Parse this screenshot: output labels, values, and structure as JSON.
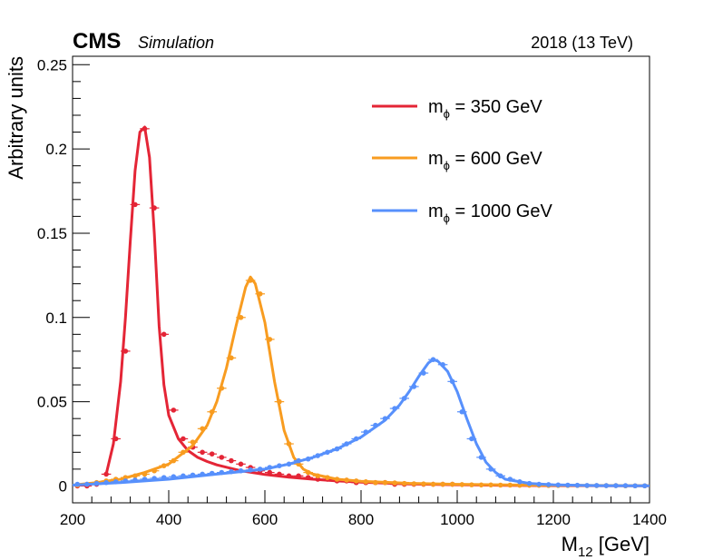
{
  "header": {
    "experiment": "CMS",
    "label": "Simulation",
    "energy": "2018 (13 TeV)"
  },
  "chart_data": {
    "type": "line",
    "title": "",
    "xlabel_main": "M",
    "xlabel_sub": "12",
    "xlabel_unit": " [GeV]",
    "ylabel": "Arbitrary units",
    "xlim": [
      200,
      1400
    ],
    "ylim": [
      -0.01,
      0.255
    ],
    "x_ticks": [
      200,
      400,
      600,
      800,
      1000,
      1200,
      1400
    ],
    "y_ticks": [
      0,
      0.05,
      0.1,
      0.15,
      0.2,
      0.25
    ],
    "x_tick_labels": [
      "200",
      "400",
      "600",
      "800",
      "1000",
      "1200",
      "1400"
    ],
    "y_tick_labels": [
      "0",
      "0.05",
      "0.1",
      "0.15",
      "0.2",
      "0.25"
    ],
    "grid": false,
    "legend_position": "top-right",
    "series": [
      {
        "name": "350",
        "legend_prefix": "m",
        "legend_sub": "ϕ",
        "legend_text": " = 350 GeV",
        "color": "#e42536",
        "curve": {
          "x": [
            270,
            285,
            300,
            310,
            320,
            330,
            340,
            350,
            360,
            370,
            380,
            390,
            400,
            420,
            440,
            460,
            480,
            500,
            550,
            600,
            650,
            700,
            750,
            800,
            850,
            900,
            1000,
            1100,
            1200,
            1400
          ],
          "y": [
            0.007,
            0.025,
            0.062,
            0.1,
            0.145,
            0.187,
            0.21,
            0.213,
            0.195,
            0.15,
            0.095,
            0.06,
            0.042,
            0.028,
            0.021,
            0.017,
            0.0145,
            0.0125,
            0.009,
            0.0068,
            0.0052,
            0.004,
            0.003,
            0.0023,
            0.0017,
            0.0012,
            0.0007,
            0.0004,
            0.0002,
            0.0001
          ]
        },
        "points": {
          "x": [
            210,
            230,
            250,
            270,
            290,
            310,
            330,
            350,
            370,
            390,
            410,
            430,
            450,
            470,
            490,
            510,
            530,
            550,
            570,
            590,
            610,
            630,
            650,
            670,
            690,
            710,
            730,
            750,
            770,
            790,
            810,
            830,
            850,
            870,
            890,
            910,
            930,
            950,
            970,
            990
          ],
          "y": [
            0,
            0,
            0.001,
            0.007,
            0.028,
            0.08,
            0.167,
            0.212,
            0.165,
            0.09,
            0.045,
            0.028,
            0.023,
            0.02,
            0.019,
            0.017,
            0.015,
            0.013,
            0.011,
            0.009,
            0.008,
            0.007,
            0.006,
            0.006,
            0.005,
            0.004,
            0.004,
            0.003,
            0.003,
            0.002,
            0.002,
            0.002,
            0.002,
            0.001,
            0.001,
            0.001,
            0.001,
            0.001,
            0.001,
            0.001
          ]
        }
      },
      {
        "name": "600",
        "legend_prefix": "m",
        "legend_sub": "ϕ",
        "legend_text": " = 600 GeV",
        "color": "#f89c20",
        "curve": {
          "x": [
            200,
            250,
            300,
            350,
            400,
            450,
            480,
            500,
            520,
            540,
            560,
            570,
            580,
            600,
            620,
            640,
            660,
            680,
            700,
            750,
            800,
            900,
            1000,
            1100,
            1200,
            1400
          ],
          "y": [
            0.0005,
            0.002,
            0.004,
            0.008,
            0.013,
            0.024,
            0.036,
            0.05,
            0.07,
            0.095,
            0.118,
            0.124,
            0.12,
            0.097,
            0.062,
            0.033,
            0.017,
            0.01,
            0.007,
            0.004,
            0.0028,
            0.0016,
            0.001,
            0.0006,
            0.0004,
            0.0002
          ]
        },
        "points": {
          "x": [
            210,
            230,
            250,
            270,
            290,
            310,
            330,
            350,
            370,
            390,
            410,
            430,
            450,
            470,
            490,
            510,
            530,
            550,
            570,
            590,
            610,
            630,
            650,
            670,
            690,
            710,
            730,
            750,
            770,
            790,
            810,
            830,
            850,
            870,
            890,
            910,
            930,
            950,
            970,
            990,
            1010,
            1030,
            1050,
            1070,
            1090,
            1110,
            1130,
            1150,
            1170,
            1190,
            1210,
            1230,
            1250,
            1270,
            1290,
            1310,
            1330,
            1350,
            1370,
            1390
          ],
          "y": [
            0.0005,
            0.001,
            0.002,
            0.003,
            0.004,
            0.005,
            0.006,
            0.007,
            0.009,
            0.012,
            0.015,
            0.02,
            0.026,
            0.034,
            0.044,
            0.058,
            0.076,
            0.1,
            0.122,
            0.114,
            0.087,
            0.05,
            0.025,
            0.013,
            0.008,
            0.006,
            0.005,
            0.004,
            0.0035,
            0.003,
            0.0025,
            0.002,
            0.002,
            0.0018,
            0.0015,
            0.0013,
            0.0012,
            0.001,
            0.001,
            0.001,
            0.0008,
            0.0007,
            0.0006,
            0.0006,
            0.0005,
            0.0005,
            0.0004,
            0.0004,
            0.0004,
            0.0003,
            0.0003,
            0.0003,
            0.0003,
            0.0002,
            0.0002,
            0.0002,
            0.0002,
            0.0001,
            0.0001,
            0.0001
          ]
        }
      },
      {
        "name": "1000",
        "legend_prefix": "m",
        "legend_sub": "ϕ",
        "legend_text": " = 1000 GeV",
        "color": "#5790fc",
        "curve": {
          "x": [
            200,
            300,
            400,
            500,
            600,
            650,
            700,
            750,
            800,
            850,
            880,
            900,
            920,
            940,
            950,
            960,
            980,
            1000,
            1020,
            1040,
            1060,
            1080,
            1100,
            1150,
            1200,
            1300,
            1400
          ],
          "y": [
            0.0005,
            0.002,
            0.004,
            0.007,
            0.01,
            0.013,
            0.017,
            0.022,
            0.029,
            0.039,
            0.048,
            0.056,
            0.065,
            0.073,
            0.075,
            0.074,
            0.068,
            0.056,
            0.04,
            0.025,
            0.014,
            0.008,
            0.004,
            0.0015,
            0.0007,
            0.0002,
            0.0001
          ]
        },
        "points": {
          "x": [
            210,
            230,
            250,
            270,
            290,
            310,
            330,
            350,
            370,
            390,
            410,
            430,
            450,
            470,
            490,
            510,
            530,
            550,
            570,
            590,
            610,
            630,
            650,
            670,
            690,
            710,
            730,
            750,
            770,
            790,
            810,
            830,
            850,
            870,
            890,
            910,
            930,
            950,
            970,
            990,
            1010,
            1030,
            1050,
            1070,
            1090,
            1110,
            1130,
            1150,
            1170,
            1190,
            1210,
            1230,
            1250,
            1270,
            1290,
            1310,
            1330,
            1350,
            1370,
            1390
          ],
          "y": [
            0.001,
            0.001,
            0.0015,
            0.002,
            0.0025,
            0.003,
            0.0035,
            0.004,
            0.0045,
            0.005,
            0.0055,
            0.006,
            0.0065,
            0.007,
            0.0075,
            0.008,
            0.0085,
            0.009,
            0.0095,
            0.01,
            0.011,
            0.012,
            0.013,
            0.015,
            0.016,
            0.018,
            0.02,
            0.022,
            0.025,
            0.028,
            0.032,
            0.036,
            0.04,
            0.046,
            0.052,
            0.059,
            0.067,
            0.075,
            0.072,
            0.062,
            0.044,
            0.028,
            0.017,
            0.01,
            0.006,
            0.004,
            0.0025,
            0.0015,
            0.001,
            0.0008,
            0.0006,
            0.0005,
            0.0004,
            0.0003,
            0.0003,
            0.0002,
            0.0002,
            0.0002,
            0.0001,
            0.0001
          ]
        }
      }
    ]
  }
}
